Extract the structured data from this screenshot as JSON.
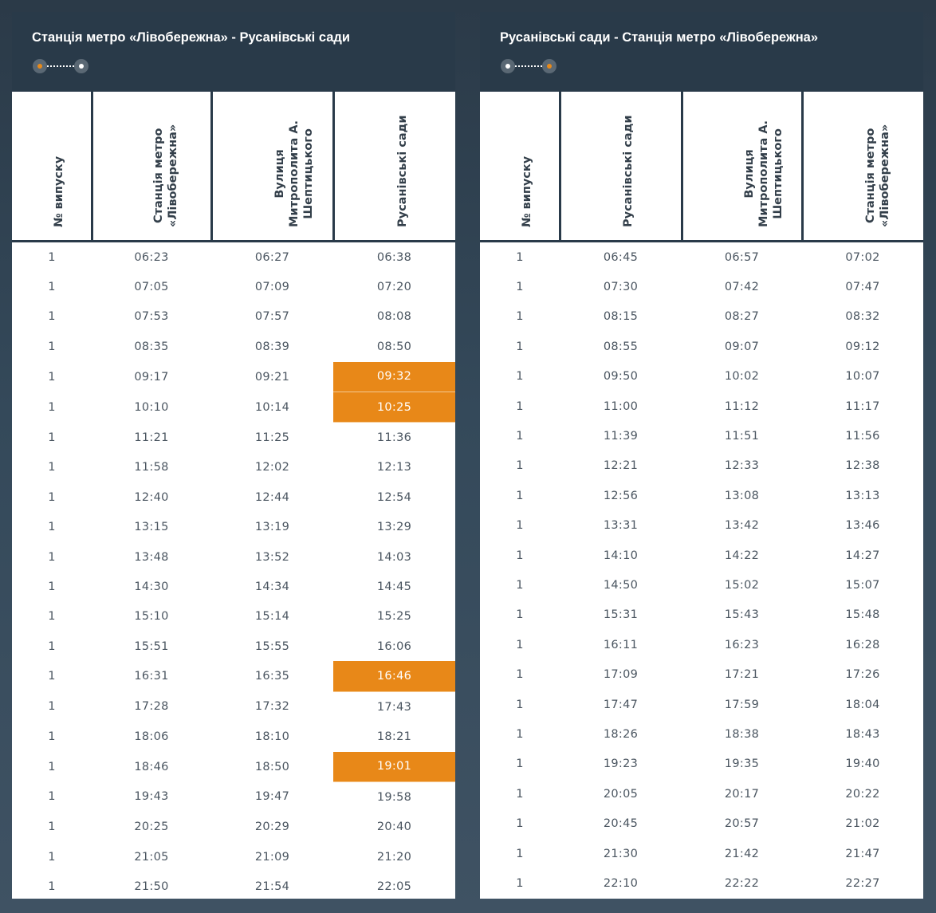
{
  "accent_color": "#e88818",
  "left": {
    "title": "Станція метро «Лівобережна» - Русанівські сади",
    "indicator": {
      "start_dot": "orange",
      "end_dot": "white"
    },
    "headers": [
      [
        "№ випуску"
      ],
      [
        "Станція метро",
        "«Лівобережна»"
      ],
      [
        "Вулиця",
        "Митрополита А.",
        "Шептицького"
      ],
      [
        "Русанівські сади"
      ]
    ],
    "rows": [
      [
        "1",
        "06:23",
        "06:27",
        "06:38"
      ],
      [
        "1",
        "07:05",
        "07:09",
        "07:20"
      ],
      [
        "1",
        "07:53",
        "07:57",
        "08:08"
      ],
      [
        "1",
        "08:35",
        "08:39",
        "08:50"
      ],
      [
        "1",
        "09:17",
        "09:21",
        "09:32"
      ],
      [
        "1",
        "10:10",
        "10:14",
        "10:25"
      ],
      [
        "1",
        "11:21",
        "11:25",
        "11:36"
      ],
      [
        "1",
        "11:58",
        "12:02",
        "12:13"
      ],
      [
        "1",
        "12:40",
        "12:44",
        "12:54"
      ],
      [
        "1",
        "13:15",
        "13:19",
        "13:29"
      ],
      [
        "1",
        "13:48",
        "13:52",
        "14:03"
      ],
      [
        "1",
        "14:30",
        "14:34",
        "14:45"
      ],
      [
        "1",
        "15:10",
        "15:14",
        "15:25"
      ],
      [
        "1",
        "15:51",
        "15:55",
        "16:06"
      ],
      [
        "1",
        "16:31",
        "16:35",
        "16:46"
      ],
      [
        "1",
        "17:28",
        "17:32",
        "17:43"
      ],
      [
        "1",
        "18:06",
        "18:10",
        "18:21"
      ],
      [
        "1",
        "18:46",
        "18:50",
        "19:01"
      ],
      [
        "1",
        "19:43",
        "19:47",
        "19:58"
      ],
      [
        "1",
        "20:25",
        "20:29",
        "20:40"
      ],
      [
        "1",
        "21:05",
        "21:09",
        "21:20"
      ],
      [
        "1",
        "21:50",
        "21:54",
        "22:05"
      ]
    ],
    "highlighted": [
      [
        4,
        3
      ],
      [
        5,
        3
      ],
      [
        14,
        3
      ],
      [
        17,
        3
      ]
    ]
  },
  "right": {
    "title": "Русанівські сади - Станція метро «Лівобережна»",
    "indicator": {
      "start_dot": "white",
      "end_dot": "orange"
    },
    "headers": [
      [
        "№ випуску"
      ],
      [
        "Русанівські сади"
      ],
      [
        "Вулиця",
        "Митрополита А.",
        "Шептицького"
      ],
      [
        "Станція метро",
        "«Лівобережна»"
      ]
    ],
    "rows": [
      [
        "1",
        "06:45",
        "06:57",
        "07:02"
      ],
      [
        "1",
        "07:30",
        "07:42",
        "07:47"
      ],
      [
        "1",
        "08:15",
        "08:27",
        "08:32"
      ],
      [
        "1",
        "08:55",
        "09:07",
        "09:12"
      ],
      [
        "1",
        "09:50",
        "10:02",
        "10:07"
      ],
      [
        "1",
        "11:00",
        "11:12",
        "11:17"
      ],
      [
        "1",
        "11:39",
        "11:51",
        "11:56"
      ],
      [
        "1",
        "12:21",
        "12:33",
        "12:38"
      ],
      [
        "1",
        "12:56",
        "13:08",
        "13:13"
      ],
      [
        "1",
        "13:31",
        "13:42",
        "13:46"
      ],
      [
        "1",
        "14:10",
        "14:22",
        "14:27"
      ],
      [
        "1",
        "14:50",
        "15:02",
        "15:07"
      ],
      [
        "1",
        "15:31",
        "15:43",
        "15:48"
      ],
      [
        "1",
        "16:11",
        "16:23",
        "16:28"
      ],
      [
        "1",
        "17:09",
        "17:21",
        "17:26"
      ],
      [
        "1",
        "17:47",
        "17:59",
        "18:04"
      ],
      [
        "1",
        "18:26",
        "18:38",
        "18:43"
      ],
      [
        "1",
        "19:23",
        "19:35",
        "19:40"
      ],
      [
        "1",
        "20:05",
        "20:17",
        "20:22"
      ],
      [
        "1",
        "20:45",
        "20:57",
        "21:02"
      ],
      [
        "1",
        "21:30",
        "21:42",
        "21:47"
      ],
      [
        "1",
        "22:10",
        "22:22",
        "22:27"
      ]
    ],
    "highlighted": []
  }
}
